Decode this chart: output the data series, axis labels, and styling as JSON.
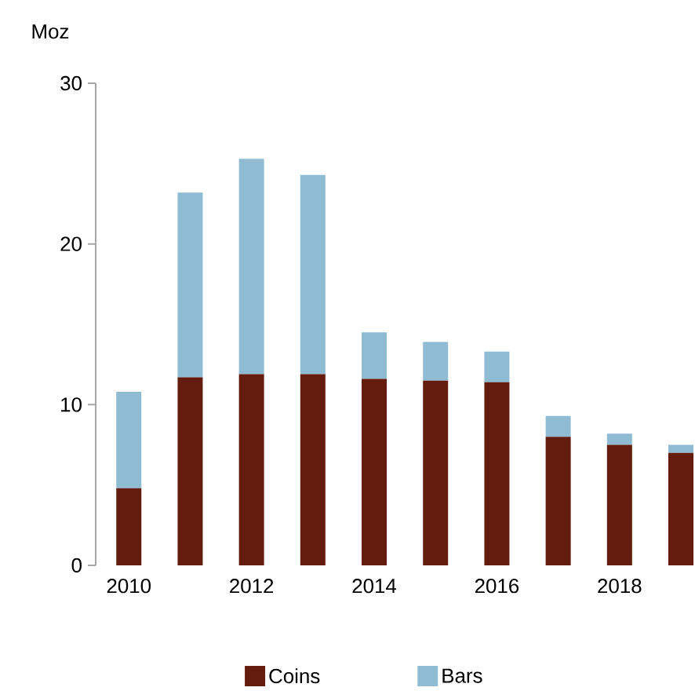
{
  "chart_data": {
    "type": "bar",
    "stacked": true,
    "ylabel": "Moz",
    "categories": [
      "2010",
      null,
      "2012",
      null,
      "2014",
      null,
      "2016",
      null,
      "2018",
      null
    ],
    "series": [
      {
        "name": "Coins",
        "color": "#641c0e",
        "values": [
          4.8,
          11.7,
          11.9,
          11.9,
          11.6,
          11.5,
          11.4,
          8.0,
          7.5,
          7.0
        ]
      },
      {
        "name": "Bars",
        "color": "#8fbbd3",
        "values": [
          6.0,
          11.5,
          13.4,
          12.4,
          2.9,
          2.4,
          1.9,
          1.3,
          0.7,
          0.5
        ]
      }
    ],
    "ylim": [
      0,
      30
    ],
    "yticks": [
      0,
      10,
      20,
      30
    ],
    "grid": false,
    "legend": "bottom"
  }
}
